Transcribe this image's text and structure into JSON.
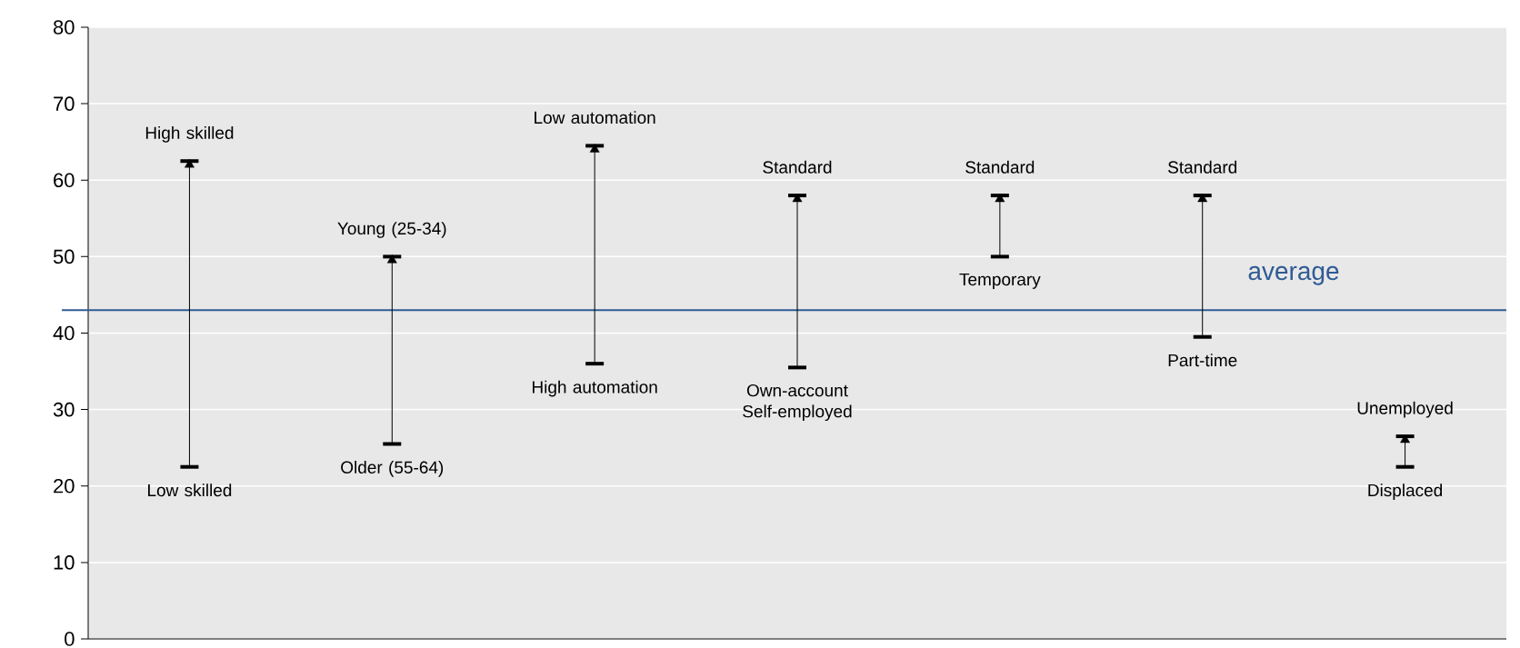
{
  "chart_data": {
    "type": "scatter",
    "categories": [
      null,
      null,
      null,
      null,
      null,
      null,
      null
    ],
    "values": [
      62.5,
      50,
      64.5,
      58,
      58,
      58,
      26.5
    ],
    "errors": [
      [
        22.5,
        62.5
      ],
      [
        25.5,
        50
      ],
      [
        36,
        64.5
      ],
      [
        35.5,
        58
      ],
      [
        50,
        58
      ],
      [
        39.5,
        58
      ],
      [
        22.5,
        26.5
      ]
    ],
    "color": "#000000",
    "marker": "triangle",
    "ylim": [
      0,
      80
    ],
    "yticks": [
      0,
      10,
      20,
      30,
      40,
      50,
      60,
      70,
      80
    ],
    "grid": true,
    "ref_lines": [
      {
        "axis": "y",
        "value": 43,
        "label": "average",
        "color": "#2f5b94"
      }
    ],
    "annotations": [
      "High skilled",
      "Low skilled",
      "Young (25-34)",
      "Older (55-64)",
      "Low automation",
      "High automation",
      "Standard",
      "Own-account Self-employed",
      "Standard",
      "Temporary",
      "Standard",
      "Part-time",
      "Unemployed",
      "Displaced"
    ]
  }
}
